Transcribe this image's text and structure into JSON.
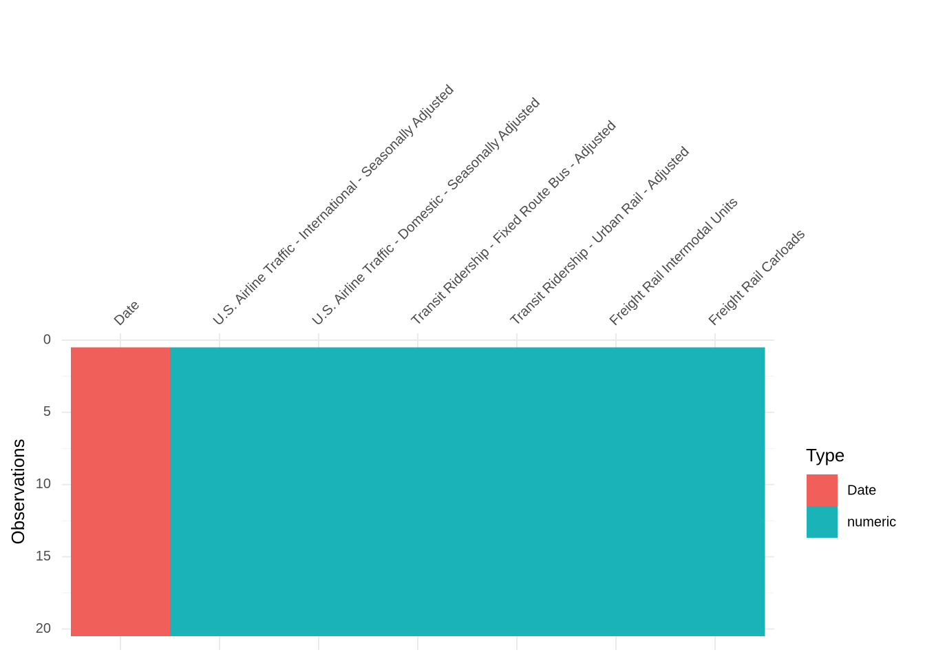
{
  "chart_data": {
    "type": "tile",
    "categories": [
      "Date",
      "U.S. Airline Traffic - International - Seasonally Adjusted",
      "U.S. Airline Traffic - Domestic - Seasonally Adjusted",
      "Transit Ridership - Fixed Route Bus - Adjusted",
      "Transit Ridership - Urban Rail - Adjusted",
      "Freight Rail Intermodal Units",
      "Freight Rail Carloads"
    ],
    "types": [
      "Date",
      "numeric",
      "numeric",
      "numeric",
      "numeric",
      "numeric",
      "numeric"
    ],
    "rows": 20,
    "y_label": "Observations",
    "ylim": [
      -0.5,
      21
    ],
    "yticks": [
      0,
      5,
      10,
      15,
      20
    ],
    "y_reversed": true,
    "grid": true,
    "legend_title": "Type",
    "series": [
      {
        "name": "Date",
        "color": "#F15F5B"
      },
      {
        "name": "numeric",
        "color": "#1AB4B8"
      }
    ],
    "legend_position": "right"
  }
}
